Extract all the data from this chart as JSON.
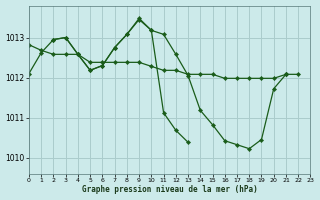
{
  "bg_color": "#cceaea",
  "grid_color": "#aacccc",
  "line_color": "#1a5c1a",
  "line1_x": [
    0,
    1,
    2,
    3,
    4,
    5,
    6,
    7,
    8,
    9,
    10,
    11,
    12,
    13,
    14,
    15,
    16,
    17,
    18,
    19,
    20,
    21,
    22
  ],
  "line1_y": [
    1012.82,
    1012.68,
    1012.58,
    1012.58,
    1012.58,
    1012.38,
    1012.38,
    1012.38,
    1012.38,
    1012.38,
    1012.28,
    1012.18,
    1012.18,
    1012.08,
    1012.08,
    1012.08,
    1011.98,
    1011.98,
    1011.98,
    1011.98,
    1011.98,
    1012.08,
    1012.08
  ],
  "line2_x": [
    0,
    1,
    2,
    3,
    4,
    5,
    6,
    7,
    8,
    9,
    10,
    11,
    12,
    13,
    14,
    15,
    16,
    17,
    18,
    19,
    20,
    21,
    22
  ],
  "line2_y": [
    1012.1,
    1012.62,
    1012.95,
    1013.0,
    1012.58,
    1012.18,
    1012.3,
    1012.75,
    1013.08,
    1013.45,
    1013.18,
    1013.08,
    1012.58,
    1012.05,
    1011.18,
    1010.82,
    1010.42,
    1010.32,
    1010.22,
    1010.45,
    1011.72,
    1012.08,
    null
  ],
  "line3_x": [
    2,
    3,
    4,
    5,
    6,
    7,
    8,
    9,
    10,
    11,
    12,
    13,
    14,
    15,
    16,
    17,
    18,
    19,
    20,
    21,
    22
  ],
  "line3_y": [
    1012.95,
    1013.0,
    1012.58,
    1012.18,
    1012.3,
    1012.75,
    1013.08,
    1013.48,
    1013.18,
    1011.12,
    1010.68,
    1010.38,
    null,
    null,
    null,
    null,
    null,
    null,
    null,
    1012.08,
    null
  ],
  "xlabel": "Graphe pression niveau de la mer (hPa)",
  "xlim": [
    0,
    23
  ],
  "ylim": [
    1009.6,
    1013.8
  ],
  "yticks": [
    1010,
    1011,
    1012,
    1013
  ],
  "xticks": [
    0,
    1,
    2,
    3,
    4,
    5,
    6,
    7,
    8,
    9,
    10,
    11,
    12,
    13,
    14,
    15,
    16,
    17,
    18,
    19,
    20,
    21,
    22,
    23
  ]
}
